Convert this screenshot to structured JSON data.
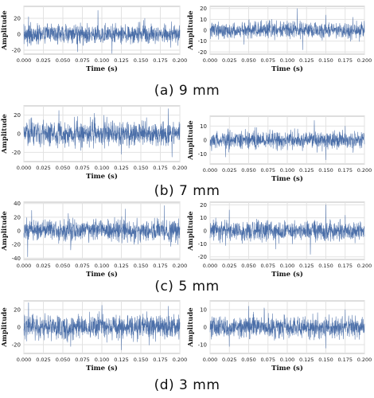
{
  "figure": {
    "captions": [
      "(a) 9 mm",
      "(b) 7 mm",
      "(c) 5 mm",
      "(d) 3 mm"
    ]
  },
  "style": {
    "line_color": "#4a6ea8",
    "grid_color": "#e2e2e2",
    "frame_color": "#bdbdbd"
  },
  "chart_data": [
    {
      "type": "line",
      "panel": "a-left",
      "xlabel": "Time (s)",
      "ylabel": "Amplitude",
      "xlim": [
        0,
        0.2
      ],
      "ylim": [
        -25,
        35
      ],
      "xticks": [
        "0.000",
        "0.025",
        "0.050",
        "0.075",
        "0.100",
        "0.125",
        "0.150",
        "0.175",
        "0.200"
      ],
      "yticks": [
        "-20",
        "0",
        "20"
      ],
      "grid": true,
      "series": [
        {
          "signal": "noise",
          "amplitude": 10,
          "peaks": [
            [
              0.006,
              22
            ],
            [
              0.069,
              -22
            ],
            [
              0.095,
              30
            ],
            [
              0.113,
              -24
            ],
            [
              0.155,
              20
            ]
          ]
        }
      ]
    },
    {
      "type": "line",
      "panel": "a-right",
      "xlabel": "Time (s)",
      "ylabel": "Amplitude",
      "xlim": [
        0,
        0.2
      ],
      "ylim": [
        -22,
        22
      ],
      "xticks": [
        "0.000",
        "0.025",
        "0.050",
        "0.075",
        "0.100",
        "0.125",
        "0.150",
        "0.175",
        "0.200"
      ],
      "yticks": [
        "-20",
        "-10",
        "0",
        "10",
        "20"
      ],
      "grid": true,
      "series": [
        {
          "signal": "noise",
          "amplitude": 6,
          "peaks": [
            [
              0.113,
              20
            ],
            [
              0.12,
              -18
            ],
            [
              0.15,
              14
            ],
            [
              0.185,
              12
            ],
            [
              0.044,
              -13
            ]
          ]
        }
      ]
    },
    {
      "type": "line",
      "panel": "b-left",
      "xlabel": "Time (s)",
      "ylabel": "Amplitude",
      "xlim": [
        0,
        0.2
      ],
      "ylim": [
        -30,
        30
      ],
      "xticks": [
        "0.000",
        "0.025",
        "0.050",
        "0.075",
        "0.100",
        "0.125",
        "0.150",
        "0.175",
        "0.200"
      ],
      "yticks": [
        "-20",
        "0",
        "20"
      ],
      "grid": true,
      "series": [
        {
          "signal": "noise",
          "amplitude": 11,
          "peaks": [
            [
              0.045,
              25
            ],
            [
              0.09,
              22
            ],
            [
              0.125,
              -22
            ],
            [
              0.185,
              27
            ],
            [
              0.19,
              -25
            ]
          ]
        }
      ]
    },
    {
      "type": "line",
      "panel": "b-right",
      "xlabel": "Time (s)",
      "ylabel": "Amplitude",
      "xlim": [
        0,
        0.2
      ],
      "ylim": [
        -17,
        17
      ],
      "xticks": [
        "0.000",
        "0.025",
        "0.050",
        "0.075",
        "0.100",
        "0.125",
        "0.150",
        "0.175",
        "0.200"
      ],
      "yticks": [
        "-10",
        "0",
        "10"
      ],
      "grid": true,
      "series": [
        {
          "signal": "noise",
          "amplitude": 5,
          "peaks": [
            [
              0.02,
              -12
            ],
            [
              0.135,
              14
            ],
            [
              0.15,
              -14
            ],
            [
              0.175,
              10
            ],
            [
              0.06,
              9
            ]
          ]
        }
      ]
    },
    {
      "type": "line",
      "panel": "c-left",
      "xlabel": "Time (s)",
      "ylabel": "Amplitude",
      "xlim": [
        0,
        0.2
      ],
      "ylim": [
        -42,
        42
      ],
      "xticks": [
        "0.000",
        "0.025",
        "0.050",
        "0.075",
        "0.100",
        "0.125",
        "0.150",
        "0.175",
        "0.200"
      ],
      "yticks": [
        "-40",
        "-20",
        "0",
        "20",
        "40"
      ],
      "grid": true,
      "series": [
        {
          "signal": "noise",
          "amplitude": 13,
          "peaks": [
            [
              0.01,
              30
            ],
            [
              0.005,
              -38
            ],
            [
              0.18,
              37
            ],
            [
              0.13,
              32
            ],
            [
              0.06,
              -28
            ]
          ]
        }
      ]
    },
    {
      "type": "line",
      "panel": "c-right",
      "xlabel": "Time (s)",
      "ylabel": "Amplitude",
      "xlim": [
        0,
        0.2
      ],
      "ylim": [
        -22,
        22
      ],
      "xticks": [
        "0.000",
        "0.025",
        "0.050",
        "0.075",
        "0.100",
        "0.125",
        "0.150",
        "0.175",
        "0.200"
      ],
      "yticks": [
        "-20",
        "-10",
        "0",
        "10",
        "20"
      ],
      "grid": true,
      "series": [
        {
          "signal": "noise",
          "amplitude": 6,
          "peaks": [
            [
              0.025,
              16
            ],
            [
              0.13,
              -18
            ],
            [
              0.15,
              20
            ],
            [
              0.085,
              -14
            ],
            [
              0.175,
              12
            ]
          ]
        }
      ]
    },
    {
      "type": "line",
      "panel": "d-left",
      "xlabel": "Time (s)",
      "ylabel": "Amplitude",
      "xlim": [
        0,
        0.2
      ],
      "ylim": [
        -30,
        30
      ],
      "xticks": [
        "0.000",
        "0.025",
        "0.050",
        "0.075",
        "0.100",
        "0.125",
        "0.150",
        "0.175",
        "0.200"
      ],
      "yticks": [
        "-20",
        "0",
        "20"
      ],
      "grid": true,
      "series": [
        {
          "signal": "noise",
          "amplitude": 11,
          "peaks": [
            [
              0.006,
              28
            ],
            [
              0.1,
              25
            ],
            [
              0.125,
              -26
            ],
            [
              0.185,
              24
            ],
            [
              0.06,
              -22
            ]
          ]
        }
      ]
    },
    {
      "type": "line",
      "panel": "d-right",
      "xlabel": "Time (s)",
      "ylabel": "Amplitude",
      "xlim": [
        0,
        0.2
      ],
      "ylim": [
        -15,
        15
      ],
      "xticks": [
        "0.000",
        "0.025",
        "0.050",
        "0.075",
        "0.100",
        "0.125",
        "0.150",
        "0.175",
        "0.200"
      ],
      "yticks": [
        "-10",
        "0",
        "10"
      ],
      "grid": true,
      "series": [
        {
          "signal": "noise",
          "amplitude": 5,
          "peaks": [
            [
              0.05,
              12
            ],
            [
              0.025,
              -11
            ],
            [
              0.07,
              11
            ],
            [
              0.15,
              -12
            ],
            [
              0.175,
              10
            ]
          ]
        }
      ]
    }
  ]
}
